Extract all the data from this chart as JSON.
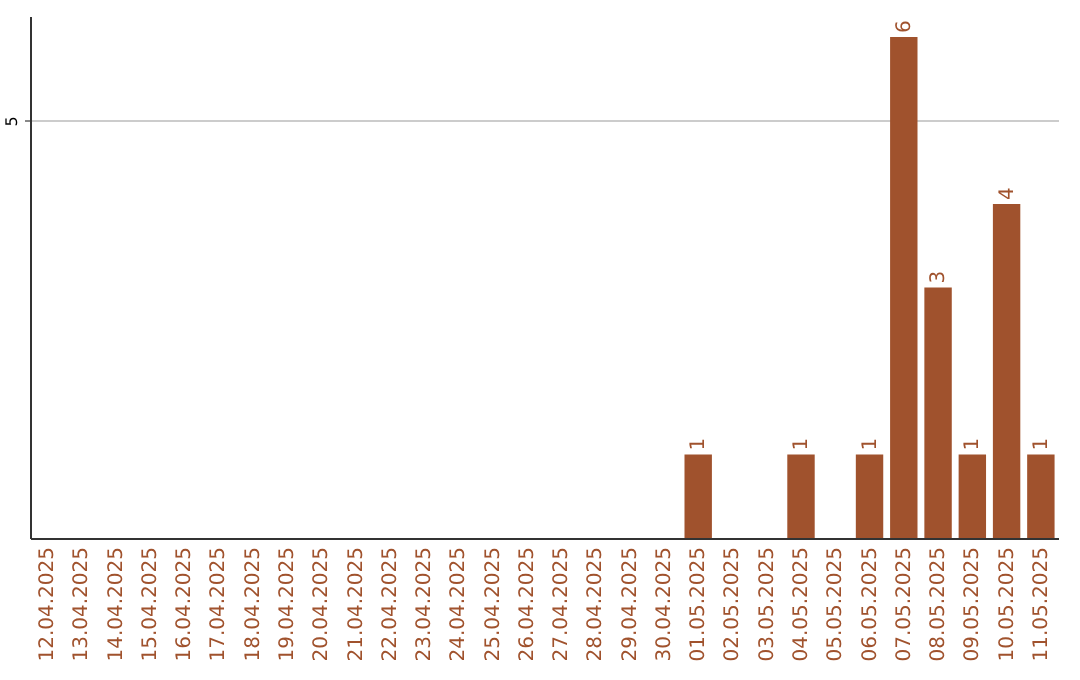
{
  "chart_data": {
    "type": "bar",
    "categories": [
      "12.04.2025",
      "13.04.2025",
      "14.04.2025",
      "15.04.2025",
      "16.04.2025",
      "17.04.2025",
      "18.04.2025",
      "19.04.2025",
      "20.04.2025",
      "21.04.2025",
      "22.04.2025",
      "23.04.2025",
      "24.04.2025",
      "25.04.2025",
      "26.04.2025",
      "27.04.2025",
      "28.04.2025",
      "29.04.2025",
      "30.04.2025",
      "01.05.2025",
      "02.05.2025",
      "03.05.2025",
      "04.05.2025",
      "05.05.2025",
      "06.05.2025",
      "07.05.2025",
      "08.05.2025",
      "09.05.2025",
      "10.05.2025",
      "11.05.2025"
    ],
    "values": [
      null,
      null,
      null,
      null,
      null,
      null,
      null,
      null,
      null,
      null,
      null,
      null,
      null,
      null,
      null,
      null,
      null,
      null,
      null,
      1,
      null,
      null,
      1,
      null,
      1,
      6,
      3,
      1,
      4,
      1
    ],
    "data_labels": true,
    "color": "#a0522d",
    "ylim": [
      0,
      6.25
    ],
    "yticks": [
      5
    ],
    "grid": "y"
  }
}
